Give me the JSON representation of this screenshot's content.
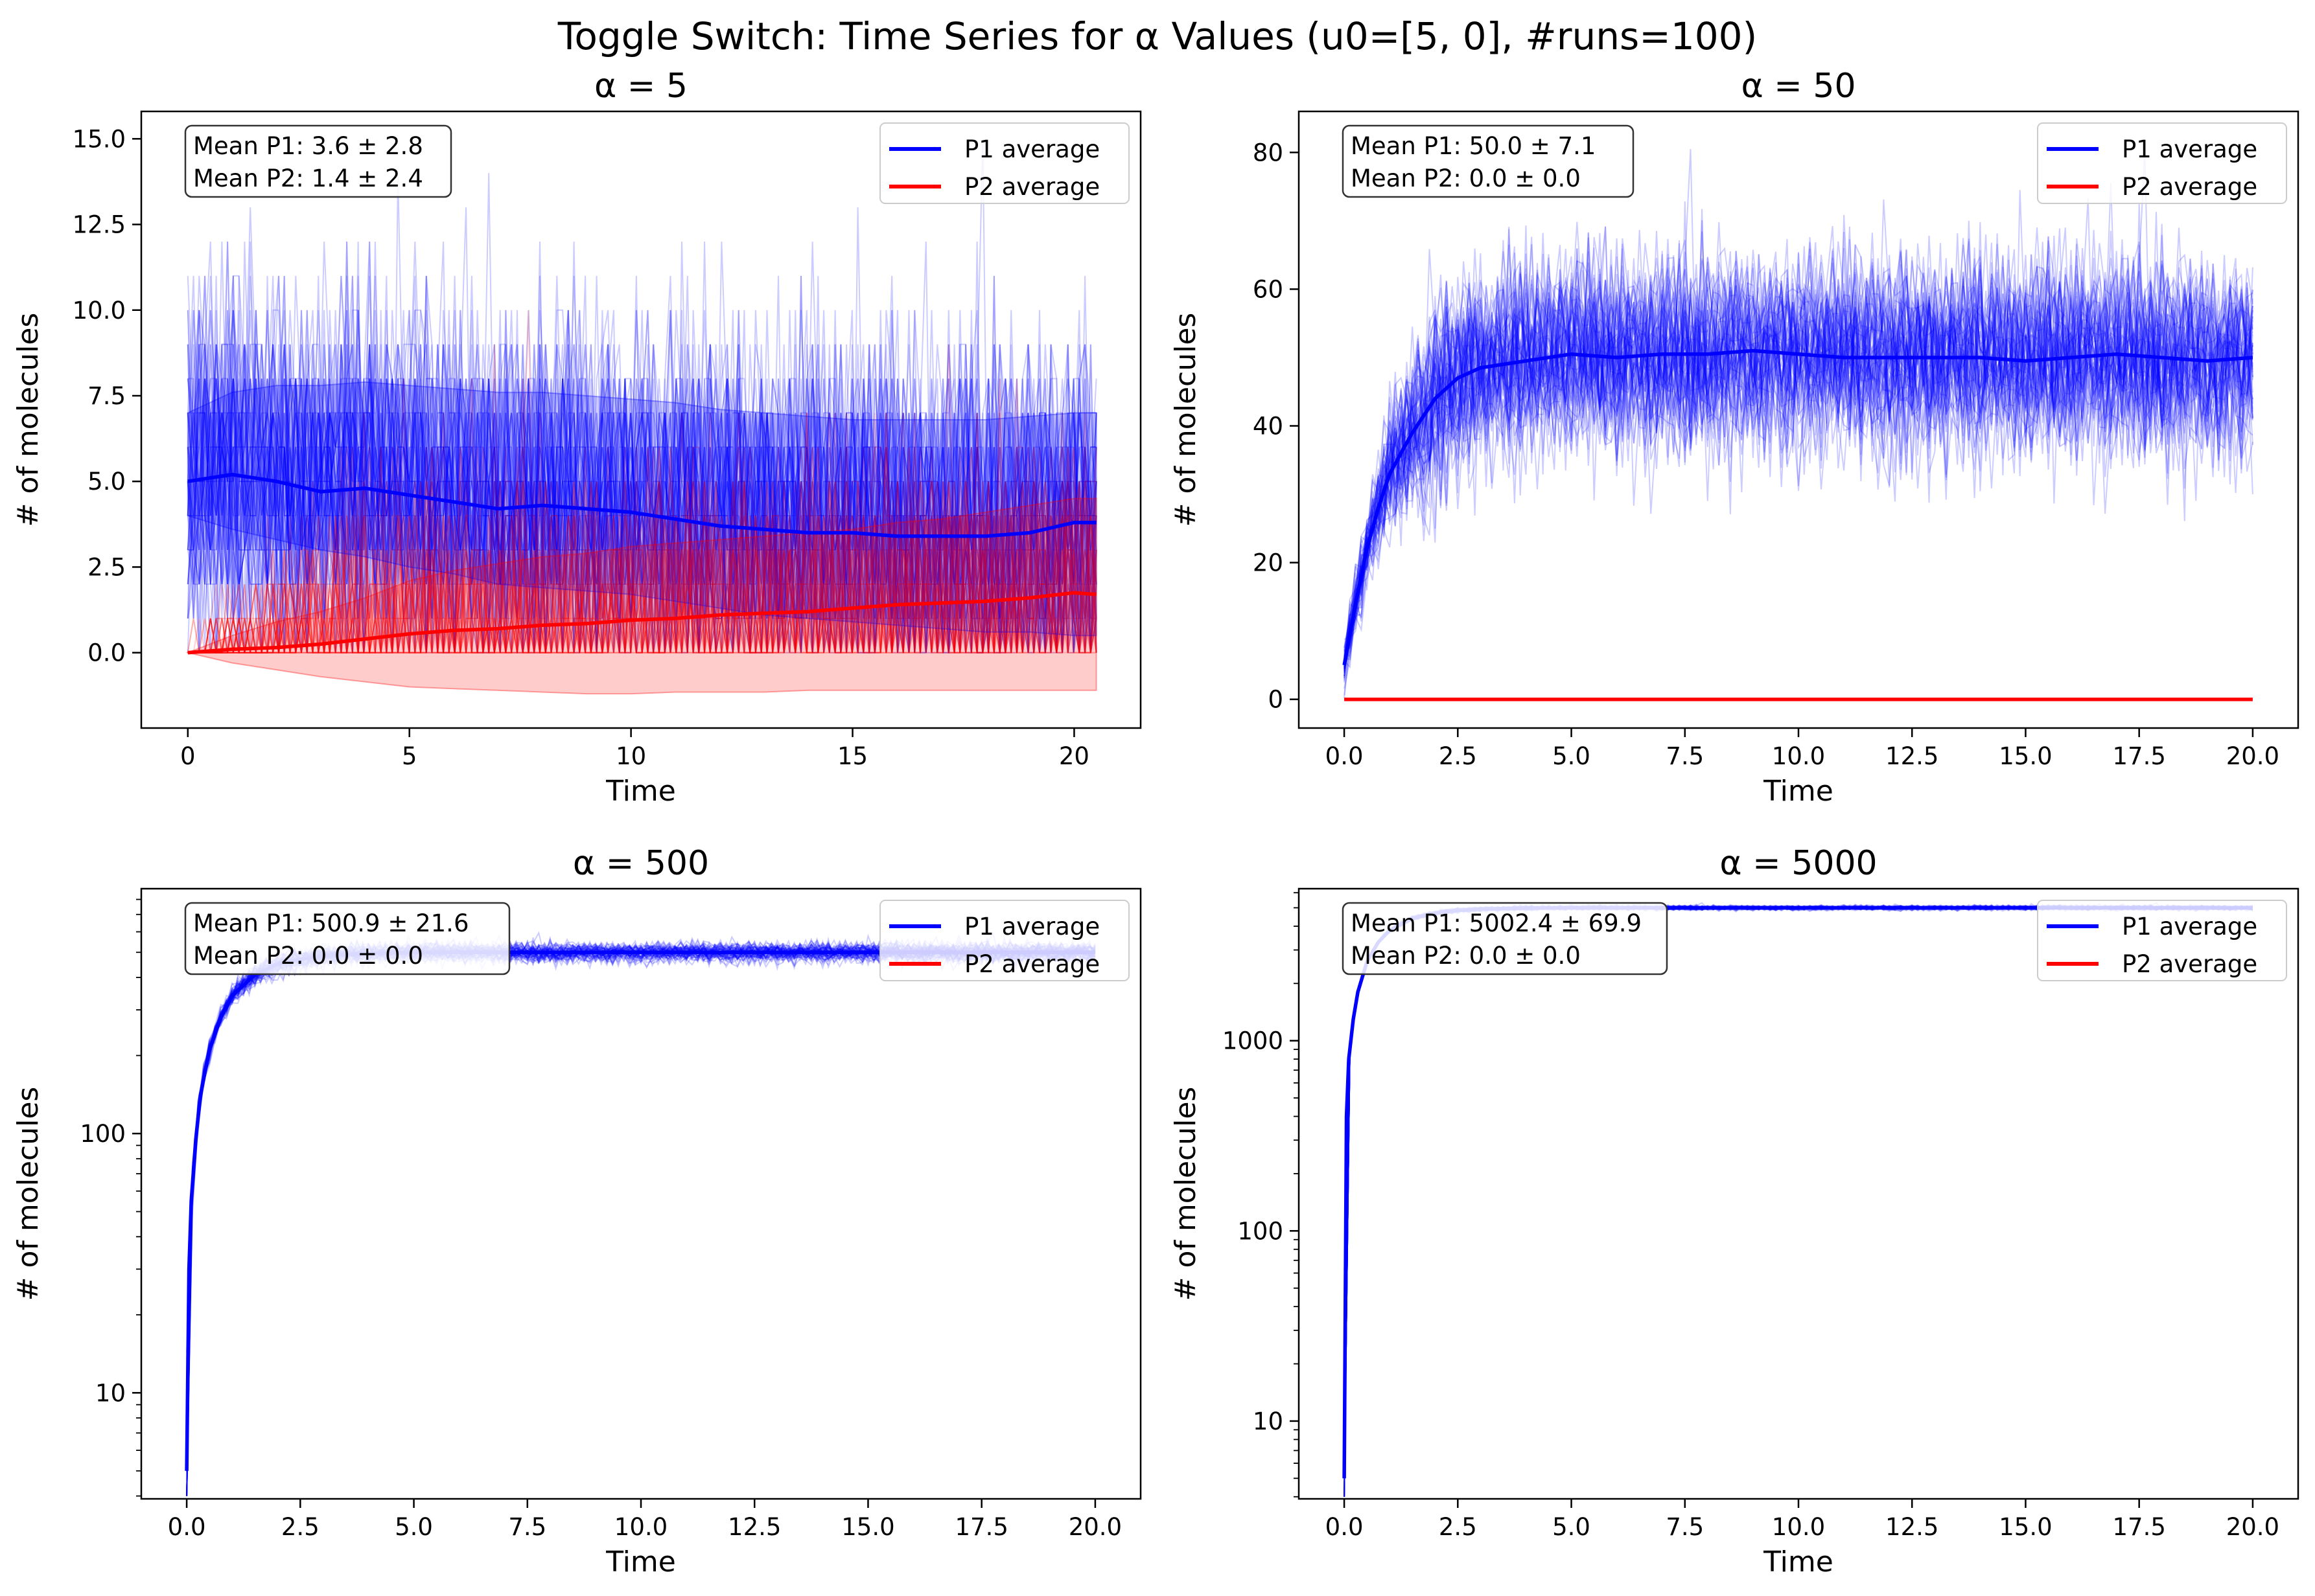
{
  "figure": {
    "title": "Toggle Switch: Time Series for α Values (u0=[5, 0], #runs=100)"
  },
  "chart_data": [
    {
      "type": "line",
      "title": "α = 5",
      "xlabel": "Time",
      "ylabel": "# of molecules",
      "yscale": "linear",
      "xlim": [
        -1.05,
        21.5
      ],
      "ylim": [
        -2.2,
        15.8
      ],
      "xticks": [
        "0",
        "5",
        "10",
        "15",
        "20"
      ],
      "xtick_values": [
        0,
        5,
        10,
        15,
        20
      ],
      "yticks": [
        "0.0",
        "2.5",
        "5.0",
        "7.5",
        "10.0",
        "12.5",
        "15.0"
      ],
      "ytick_values": [
        0,
        2.5,
        5,
        7.5,
        10,
        12.5,
        15
      ],
      "legend": {
        "position": "upper right",
        "entries": [
          "P1 average",
          "P2 average"
        ]
      },
      "stats": [
        "Mean P1: 3.6 ± 2.8",
        "Mean P2: 1.4 ± 2.4"
      ],
      "series": [
        {
          "name": "P1 average",
          "color": "#0000ff",
          "x": [
            0,
            1,
            2,
            3,
            4,
            5,
            6,
            7,
            8,
            9,
            10,
            11,
            12,
            13,
            14,
            15,
            16,
            17,
            18,
            19,
            20,
            20.5
          ],
          "y": [
            5.0,
            5.2,
            5.0,
            4.7,
            4.8,
            4.6,
            4.4,
            4.2,
            4.3,
            4.2,
            4.1,
            3.9,
            3.7,
            3.6,
            3.5,
            3.5,
            3.4,
            3.4,
            3.4,
            3.5,
            3.8,
            3.8
          ],
          "band_low": [
            4.0,
            3.6,
            3.3,
            3.0,
            2.8,
            2.5,
            2.3,
            2.0,
            1.9,
            1.8,
            1.7,
            1.5,
            1.3,
            1.1,
            1.0,
            0.9,
            0.8,
            0.7,
            0.6,
            0.6,
            0.5,
            0.5
          ],
          "band_high": [
            7.0,
            7.6,
            7.8,
            7.8,
            7.9,
            7.8,
            7.7,
            7.6,
            7.6,
            7.5,
            7.4,
            7.3,
            7.1,
            7.0,
            6.9,
            6.8,
            6.8,
            6.8,
            6.8,
            6.9,
            7.0,
            7.0
          ]
        },
        {
          "name": "P2 average",
          "color": "#ff0000",
          "x": [
            0,
            1,
            2,
            3,
            4,
            5,
            6,
            7,
            8,
            9,
            10,
            11,
            12,
            13,
            14,
            15,
            16,
            17,
            18,
            19,
            20,
            20.5
          ],
          "y": [
            0.0,
            0.1,
            0.15,
            0.25,
            0.4,
            0.55,
            0.65,
            0.7,
            0.8,
            0.85,
            0.95,
            1.0,
            1.1,
            1.15,
            1.2,
            1.3,
            1.4,
            1.45,
            1.5,
            1.6,
            1.75,
            1.7
          ],
          "band_low": [
            0.0,
            -0.3,
            -0.5,
            -0.7,
            -0.85,
            -1.0,
            -1.05,
            -1.1,
            -1.15,
            -1.2,
            -1.2,
            -1.15,
            -1.15,
            -1.15,
            -1.1,
            -1.1,
            -1.1,
            -1.1,
            -1.1,
            -1.1,
            -1.1,
            -1.1
          ],
          "band_high": [
            0.0,
            0.5,
            0.9,
            1.2,
            1.6,
            2.1,
            2.4,
            2.6,
            2.8,
            2.9,
            3.1,
            3.2,
            3.3,
            3.4,
            3.5,
            3.6,
            3.8,
            3.9,
            4.1,
            4.3,
            4.5,
            4.5
          ]
        }
      ]
    },
    {
      "type": "line",
      "title": "α = 50",
      "xlabel": "Time",
      "ylabel": "# of molecules",
      "yscale": "linear",
      "xlim": [
        -1.0,
        21.0
      ],
      "ylim": [
        -4.2,
        86.0
      ],
      "xticks": [
        "0.0",
        "2.5",
        "5.0",
        "7.5",
        "10.0",
        "12.5",
        "15.0",
        "17.5",
        "20.0"
      ],
      "xtick_values": [
        0,
        2.5,
        5,
        7.5,
        10,
        12.5,
        15,
        17.5,
        20
      ],
      "yticks": [
        "0",
        "20",
        "40",
        "60",
        "80"
      ],
      "ytick_values": [
        0,
        20,
        40,
        60,
        80
      ],
      "legend": {
        "position": "upper right",
        "entries": [
          "P1 average",
          "P2 average"
        ]
      },
      "stats": [
        "Mean P1: 50.0 ± 7.1",
        "Mean P2: 0.0 ± 0.0"
      ],
      "series": [
        {
          "name": "P1 average",
          "color": "#0000ff",
          "x": [
            0,
            0.25,
            0.5,
            0.75,
            1,
            1.5,
            2,
            2.5,
            3,
            4,
            5,
            6,
            7,
            8,
            9,
            10,
            11,
            12,
            13,
            14,
            15,
            16,
            17,
            18,
            19,
            20
          ],
          "y": [
            5,
            14,
            22,
            28,
            33,
            39,
            44,
            47,
            48.5,
            49.5,
            50.5,
            50,
            50.5,
            50.5,
            51,
            50.5,
            50,
            50,
            50,
            50,
            49.5,
            50,
            50.5,
            50,
            49.5,
            50
          ]
        },
        {
          "name": "P2 average",
          "color": "#ff0000",
          "x": [
            0,
            20
          ],
          "y": [
            0,
            0
          ]
        }
      ]
    },
    {
      "type": "line",
      "title": "α = 500",
      "xlabel": "Time",
      "ylabel": "# of molecules",
      "yscale": "log",
      "xlim": [
        -1.0,
        21.0
      ],
      "ylim": [
        3.9,
        880
      ],
      "xticks": [
        "0.0",
        "2.5",
        "5.0",
        "7.5",
        "10.0",
        "12.5",
        "15.0",
        "17.5",
        "20.0"
      ],
      "xtick_values": [
        0,
        2.5,
        5,
        7.5,
        10,
        12.5,
        15,
        17.5,
        20
      ],
      "yticks": [
        "10",
        "100"
      ],
      "ytick_values": [
        10,
        100
      ],
      "legend": {
        "position": "upper right",
        "entries": [
          "P1 average",
          "P2 average"
        ]
      },
      "stats": [
        "Mean P1: 500.9 ± 21.6",
        "Mean P2: 0.0 ± 0.0"
      ],
      "series": [
        {
          "name": "P1 average",
          "color": "#0000ff",
          "x": [
            0,
            0.05,
            0.1,
            0.2,
            0.3,
            0.5,
            0.75,
            1,
            1.5,
            2,
            2.5,
            3,
            4,
            5,
            6,
            7,
            8,
            9,
            10,
            12,
            14,
            16,
            18,
            20
          ],
          "y": [
            5,
            30,
            55,
            95,
            140,
            210,
            280,
            340,
            410,
            450,
            470,
            485,
            495,
            500,
            500,
            500,
            500,
            500,
            500,
            500,
            500,
            500,
            500,
            500
          ]
        },
        {
          "name": "P2 average",
          "color": "#ff0000",
          "x": [
            0,
            20
          ],
          "y": [
            0,
            0
          ]
        }
      ]
    },
    {
      "type": "line",
      "title": "α = 5000",
      "xlabel": "Time",
      "ylabel": "# of molecules",
      "yscale": "log",
      "xlim": [
        -1.0,
        21.0
      ],
      "ylim": [
        3.9,
        6300
      ],
      "xticks": [
        "0.0",
        "2.5",
        "5.0",
        "7.5",
        "10.0",
        "12.5",
        "15.0",
        "17.5",
        "20.0"
      ],
      "xtick_values": [
        0,
        2.5,
        5,
        7.5,
        10,
        12.5,
        15,
        17.5,
        20
      ],
      "yticks": [
        "10",
        "100",
        "1000"
      ],
      "ytick_values": [
        10,
        100,
        1000
      ],
      "legend": {
        "position": "upper right",
        "entries": [
          "P1 average",
          "P2 average"
        ]
      },
      "stats": [
        "Mean P1: 5002.4 ± 69.9",
        "Mean P2: 0.0 ± 0.0"
      ],
      "series": [
        {
          "name": "P1 average",
          "color": "#0000ff",
          "x": [
            0,
            0.05,
            0.1,
            0.2,
            0.3,
            0.5,
            0.75,
            1,
            1.5,
            2,
            2.5,
            3,
            4,
            5,
            6,
            8,
            10,
            12,
            14,
            16,
            18,
            20
          ],
          "y": [
            5,
            400,
            800,
            1300,
            1800,
            2600,
            3300,
            3800,
            4400,
            4700,
            4850,
            4920,
            4980,
            5000,
            5000,
            5000,
            5000,
            5000,
            5000,
            5000,
            5000,
            5000
          ]
        },
        {
          "name": "P2 average",
          "color": "#ff0000",
          "x": [
            0,
            20
          ],
          "y": [
            0,
            0
          ]
        }
      ]
    }
  ]
}
